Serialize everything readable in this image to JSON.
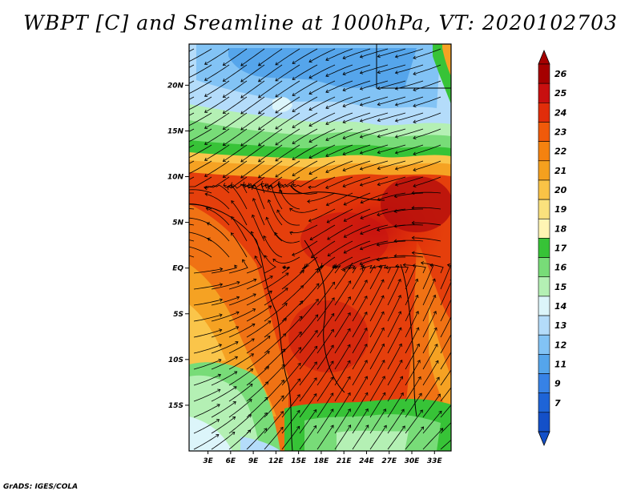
{
  "title": "WBPT [C] and Sreamline at 1000hPa, VT: 2020102703",
  "footer": "GrADS: IGES/COLA",
  "map": {
    "variable": "Wet-bulb potential temperature",
    "units": "C",
    "level": "1000hPa",
    "valid_time": "2020102703",
    "lat_labels": [
      "20N",
      "15N",
      "10N",
      "5N",
      "EQ",
      "5S",
      "10S",
      "15S"
    ],
    "lat_values": [
      20,
      15,
      10,
      5,
      0,
      -5,
      -10,
      -15
    ],
    "lon_labels": [
      "3E",
      "6E",
      "9E",
      "12E",
      "15E",
      "18E",
      "21E",
      "24E",
      "27E",
      "30E",
      "33E"
    ],
    "lon_values": [
      3,
      6,
      9,
      12,
      15,
      18,
      21,
      24,
      27,
      30,
      33
    ]
  },
  "colorbar": {
    "labels": [
      "26",
      "25",
      "24",
      "23",
      "22",
      "21",
      "20",
      "19",
      "18",
      "17",
      "16",
      "15",
      "14",
      "13",
      "12",
      "11",
      "9",
      "7"
    ],
    "colors": [
      "#a50000",
      "#c80f0f",
      "#e12d0a",
      "#f05a0a",
      "#f5820f",
      "#f5a01e",
      "#fac346",
      "#fae17d",
      "#fff5b4",
      "#37c337",
      "#78dc78",
      "#b4f0b4",
      "#dcf5fa",
      "#b4dcfa",
      "#82c3f5",
      "#55a5eb",
      "#3782e6",
      "#1e64d7",
      "#1450c8"
    ]
  },
  "icons": {
    "top_arrow": "arrow-up-icon",
    "bottom_arrow": "arrow-down-icon"
  }
}
